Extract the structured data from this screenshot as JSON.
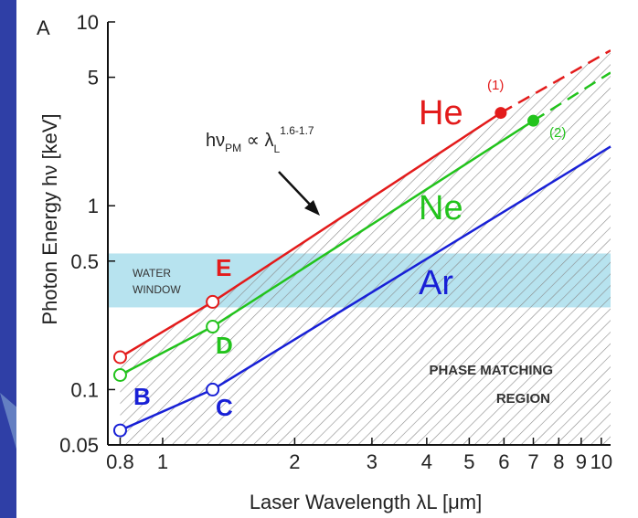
{
  "colors": {
    "background": "#2f3fa6",
    "panel": "#ffffff",
    "He": "#e31b1b",
    "Ne": "#22c31c",
    "Ar": "#1820d6",
    "water_window": "#b7e3ef",
    "hatch": "#8a8a8a",
    "text": "#222222"
  },
  "chart_data": {
    "type": "line",
    "panel_label": "A",
    "xlabel": "Laser Wavelength λL [μm]",
    "ylabel": "Photon Energy hν [keV]",
    "x_scale": "log",
    "y_scale": "log",
    "xlim": [
      0.75,
      10.5
    ],
    "ylim": [
      0.05,
      10
    ],
    "x_ticks": [
      0.8,
      1,
      2,
      3,
      4,
      5,
      6,
      7,
      8,
      9,
      10
    ],
    "x_tick_labels": [
      "0.8",
      "1",
      "2",
      "3",
      "4",
      "5",
      "6",
      "7",
      "8",
      "9",
      "10"
    ],
    "y_ticks": [
      0.05,
      0.1,
      0.5,
      1,
      5,
      10
    ],
    "y_tick_labels": [
      "0.05",
      "0.1",
      "0.5",
      "1",
      "5",
      "10"
    ],
    "series": [
      {
        "name": "He",
        "solid": [
          [
            0.8,
            0.15
          ],
          [
            1.3,
            0.3
          ],
          [
            5.9,
            3.2
          ]
        ],
        "dashed": [
          [
            5.9,
            3.2
          ],
          [
            10.5,
            7.0
          ]
        ],
        "markers": [
          {
            "label": "",
            "x": 0.8,
            "y": 0.15,
            "style": "open"
          },
          {
            "label": "E",
            "x": 1.3,
            "y": 0.3,
            "style": "open"
          },
          {
            "label": "(1)",
            "x": 5.9,
            "y": 3.2,
            "style": "filled"
          }
        ]
      },
      {
        "name": "Ne",
        "solid": [
          [
            0.8,
            0.12
          ],
          [
            1.3,
            0.22
          ],
          [
            7.0,
            2.9
          ]
        ],
        "dashed": [
          [
            7.0,
            2.9
          ],
          [
            10.5,
            5.3
          ]
        ],
        "markers": [
          {
            "label": "",
            "x": 0.8,
            "y": 0.12,
            "style": "open"
          },
          {
            "label": "D",
            "x": 1.3,
            "y": 0.22,
            "style": "open"
          },
          {
            "label": "(2)",
            "x": 7.0,
            "y": 2.9,
            "style": "filled"
          }
        ]
      },
      {
        "name": "Ar",
        "solid": [
          [
            0.8,
            0.06
          ],
          [
            1.3,
            0.1
          ],
          [
            10.5,
            2.1
          ]
        ],
        "dashed": [],
        "markers": [
          {
            "label": "B",
            "x": 0.8,
            "y": 0.06,
            "style": "open"
          },
          {
            "label": "C",
            "x": 1.3,
            "y": 0.1,
            "style": "open"
          }
        ]
      }
    ],
    "water_window": {
      "label_line1": "WATER",
      "label_line2": "WINDOW",
      "y_range": [
        0.28,
        0.55
      ]
    },
    "region_label": {
      "line1": "PHASE MATCHING",
      "line2": "REGION"
    },
    "scaling_annotation": {
      "base": "hν",
      "sub1": "PM",
      "prop": " ∝ λ",
      "sub2": "L",
      "sup": "1.6-1.7"
    },
    "grid": false,
    "legend": "none"
  }
}
